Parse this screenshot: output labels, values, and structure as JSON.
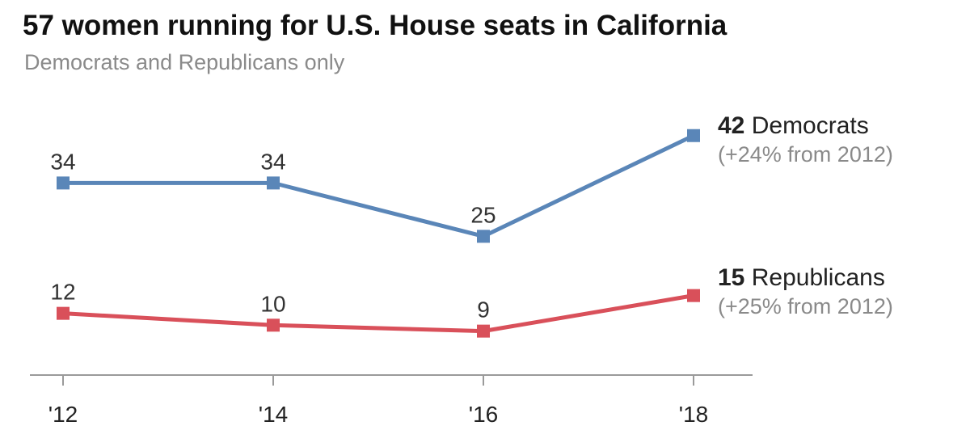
{
  "title": "57 women running for U.S. House seats in California",
  "subtitle": "Democrats and Republicans only",
  "colors": {
    "democrats": "#5a86b8",
    "republicans": "#d9505a",
    "axis": "#9a9a9a",
    "value_label": "#333333"
  },
  "labels": {
    "democrats": {
      "value": "42",
      "name": "Democrats",
      "note": "(+24% from 2012)"
    },
    "republicans": {
      "value": "15",
      "name": "Republicans",
      "note": "(+25% from 2012)"
    }
  },
  "chart_data": {
    "type": "line",
    "title": "57 women running for U.S. House seats in California",
    "subtitle": "Democrats and Republicans only",
    "x": [
      "'12",
      "'14",
      "'16",
      "'18"
    ],
    "series": [
      {
        "name": "Democrats",
        "values": [
          34,
          34,
          25,
          42
        ],
        "value_labels": [
          "34",
          "34",
          "25",
          ""
        ]
      },
      {
        "name": "Republicans",
        "values": [
          12,
          10,
          9,
          15
        ],
        "value_labels": [
          "12",
          "10",
          "9",
          ""
        ]
      }
    ],
    "xlabel": "",
    "ylabel": "",
    "grid": false,
    "legend": "end-labels"
  }
}
